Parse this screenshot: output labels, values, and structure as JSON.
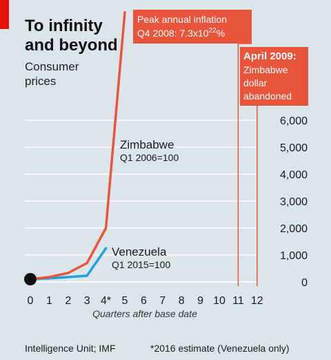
{
  "chart_data": {
    "type": "line",
    "title": [
      "To infinity",
      "and beyond"
    ],
    "subtitle": [
      "Consumer",
      "prices"
    ],
    "xlabel": "Quarters after base date",
    "x_ticks": [
      "0",
      "1",
      "2",
      "3",
      "4*",
      "5",
      "6",
      "7",
      "8",
      "9",
      "10",
      "11",
      "12"
    ],
    "y_ticks": [
      "0",
      "1,000",
      "2,000",
      "3,000",
      "4,000",
      "5,000",
      "6,000"
    ],
    "ylim": [
      0,
      6000
    ],
    "xlim": [
      0,
      12
    ],
    "grid": true,
    "series": [
      {
        "name": "Zimbabwe",
        "note": "Q1 2006=100",
        "color": "#e8553b",
        "x": [
          0,
          1,
          2,
          3,
          4,
          5
        ],
        "y": [
          100,
          180,
          330,
          700,
          2000,
          10000
        ]
      },
      {
        "name": "Venezuela",
        "note": "Q1 2015=100",
        "color": "#1fa3dc",
        "x": [
          0,
          1,
          2,
          3,
          4
        ],
        "y": [
          100,
          130,
          180,
          230,
          1250
        ]
      }
    ],
    "annotations": [
      {
        "id": "peak",
        "lines": [
          "Peak annual inflation",
          "Q4 2008: 7.3x10",
          "22",
          "%"
        ],
        "x": 11
      },
      {
        "id": "abandon",
        "lines": [
          "April 2009:",
          "Zimbabwe",
          "dollar",
          "abandoned"
        ],
        "x": 12
      }
    ],
    "source": "Intelligence Unit; IMF",
    "footnote": "*2016 estimate (Venezuela only)",
    "colors": {
      "background": "#dbe5ea",
      "grid": "#ffffff",
      "accent_red": "#e3120b",
      "annotation_fill": "#e8553b"
    }
  }
}
